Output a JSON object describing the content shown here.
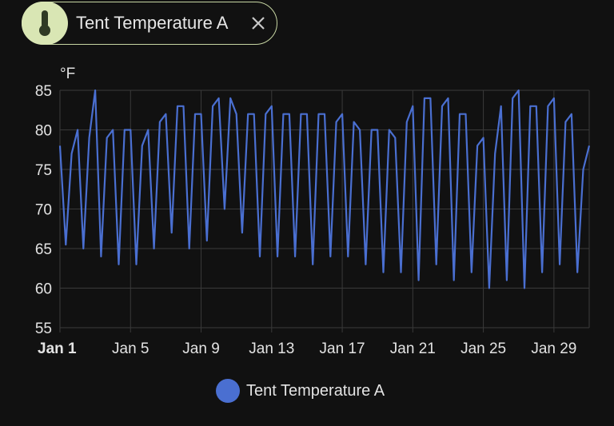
{
  "chip": {
    "label": "Tent Temperature A",
    "icon": "thermometer-icon",
    "close_icon": "close-icon"
  },
  "colors": {
    "background": "#111111",
    "series": "#4a6fd1",
    "grid": "#3a3a3a",
    "chip_accent": "#d9e6b4"
  },
  "chart_data": {
    "type": "line",
    "unit": "°F",
    "ylim": [
      55,
      85
    ],
    "yticks": [
      55,
      60,
      65,
      70,
      75,
      80,
      85
    ],
    "xlim": [
      "Jan 1",
      "Jan 31"
    ],
    "xticks": [
      "Jan 1",
      "Jan 5",
      "Jan 9",
      "Jan 13",
      "Jan 17",
      "Jan 21",
      "Jan 25",
      "Jan 29"
    ],
    "grid": true,
    "legend_position": "bottom-center",
    "series": [
      {
        "name": "Tent Temperature A",
        "x": [
          "Jan 1",
          "Jan 1",
          "Jan 1",
          "Jan 2",
          "Jan 2",
          "Jan 2",
          "Jan 3",
          "Jan 3",
          "Jan 3",
          "Jan 4",
          "Jan 4",
          "Jan 4",
          "Jan 5",
          "Jan 5",
          "Jan 5",
          "Jan 6",
          "Jan 6",
          "Jan 6",
          "Jan 7",
          "Jan 7",
          "Jan 7",
          "Jan 8",
          "Jan 8",
          "Jan 8",
          "Jan 9",
          "Jan 9",
          "Jan 9",
          "Jan 10",
          "Jan 10",
          "Jan 10",
          "Jan 11",
          "Jan 11",
          "Jan 11",
          "Jan 12",
          "Jan 12",
          "Jan 12",
          "Jan 13",
          "Jan 13",
          "Jan 13",
          "Jan 14",
          "Jan 14",
          "Jan 14",
          "Jan 15",
          "Jan 15",
          "Jan 15",
          "Jan 16",
          "Jan 16",
          "Jan 16",
          "Jan 17",
          "Jan 17",
          "Jan 17",
          "Jan 18",
          "Jan 18",
          "Jan 18",
          "Jan 19",
          "Jan 19",
          "Jan 19",
          "Jan 20",
          "Jan 20",
          "Jan 20",
          "Jan 21",
          "Jan 21",
          "Jan 21",
          "Jan 22",
          "Jan 22",
          "Jan 22",
          "Jan 23",
          "Jan 23",
          "Jan 23",
          "Jan 24",
          "Jan 24",
          "Jan 24",
          "Jan 25",
          "Jan 25",
          "Jan 25",
          "Jan 26",
          "Jan 26",
          "Jan 26",
          "Jan 27",
          "Jan 27",
          "Jan 27",
          "Jan 28",
          "Jan 28",
          "Jan 28",
          "Jan 29",
          "Jan 29",
          "Jan 29",
          "Jan 30",
          "Jan 30",
          "Jan 30",
          "Jan 31"
        ],
        "y": [
          78,
          65.5,
          77,
          80,
          65,
          79,
          85,
          64,
          79,
          80,
          63,
          80,
          80,
          63,
          78,
          80,
          65,
          81,
          82,
          67,
          83,
          83,
          65,
          82,
          82,
          66,
          83,
          84,
          70,
          84,
          82,
          67,
          82,
          82,
          64,
          82,
          83,
          64,
          82,
          82,
          64,
          82,
          82,
          63,
          82,
          82,
          64,
          81,
          82,
          64,
          81,
          80,
          63,
          80,
          80,
          62,
          80,
          79,
          62,
          81,
          83,
          61,
          84,
          84,
          63,
          83,
          84,
          61,
          82,
          82,
          62,
          78,
          79,
          60,
          77,
          83,
          61,
          84,
          85,
          60,
          83,
          83,
          62,
          83,
          84,
          63,
          81,
          82,
          62,
          75,
          78
        ]
      }
    ]
  }
}
